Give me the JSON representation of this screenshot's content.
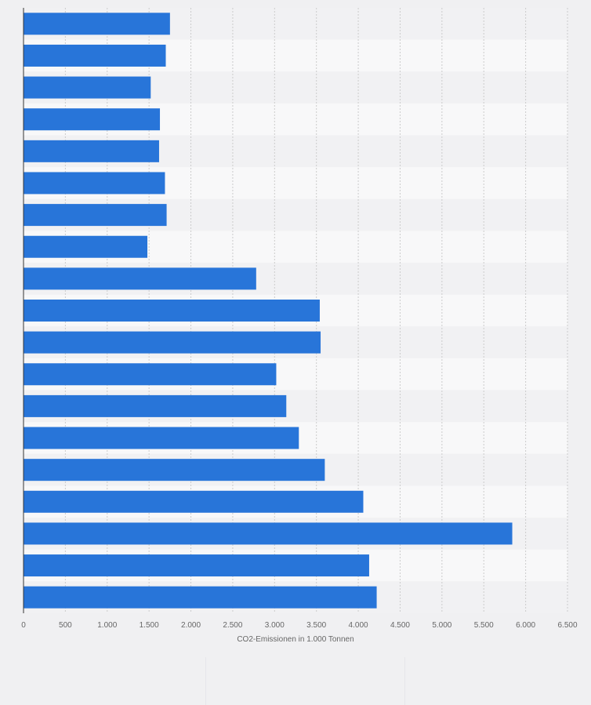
{
  "colors": {
    "bar": "#2875d9",
    "band_dark": "#f1f1f3",
    "band_light": "#f8f8f9",
    "grid": "#cccccc",
    "axis": "#333333",
    "text": "#666666"
  },
  "chart_data": {
    "type": "bar",
    "orientation": "horizontal",
    "categories": [
      "",
      "",
      "",
      "",
      "",
      "",
      "",
      "",
      "",
      "",
      "",
      "",
      "",
      "",
      "",
      "",
      "",
      "",
      ""
    ],
    "values": [
      1750,
      1700,
      1520,
      1630,
      1620,
      1690,
      1710,
      1480,
      2780,
      3540,
      3550,
      3020,
      3140,
      3290,
      3600,
      4060,
      5840,
      4130,
      4220
    ],
    "xlim": [
      0,
      6500
    ],
    "xticks": [
      0,
      500,
      1000,
      1500,
      2000,
      2500,
      3000,
      3500,
      4000,
      4500,
      5000,
      5500,
      6000,
      6500
    ],
    "xtick_labels": [
      "0",
      "500",
      "1.000",
      "1.500",
      "2.000",
      "2.500",
      "3.000",
      "3.500",
      "4.000",
      "4.500",
      "5.000",
      "5.500",
      "6.000",
      "6.500"
    ],
    "xlabel": "CO2-Emissionen in 1.000 Tonnen",
    "ylabel": "",
    "title": "",
    "grid": true
  }
}
